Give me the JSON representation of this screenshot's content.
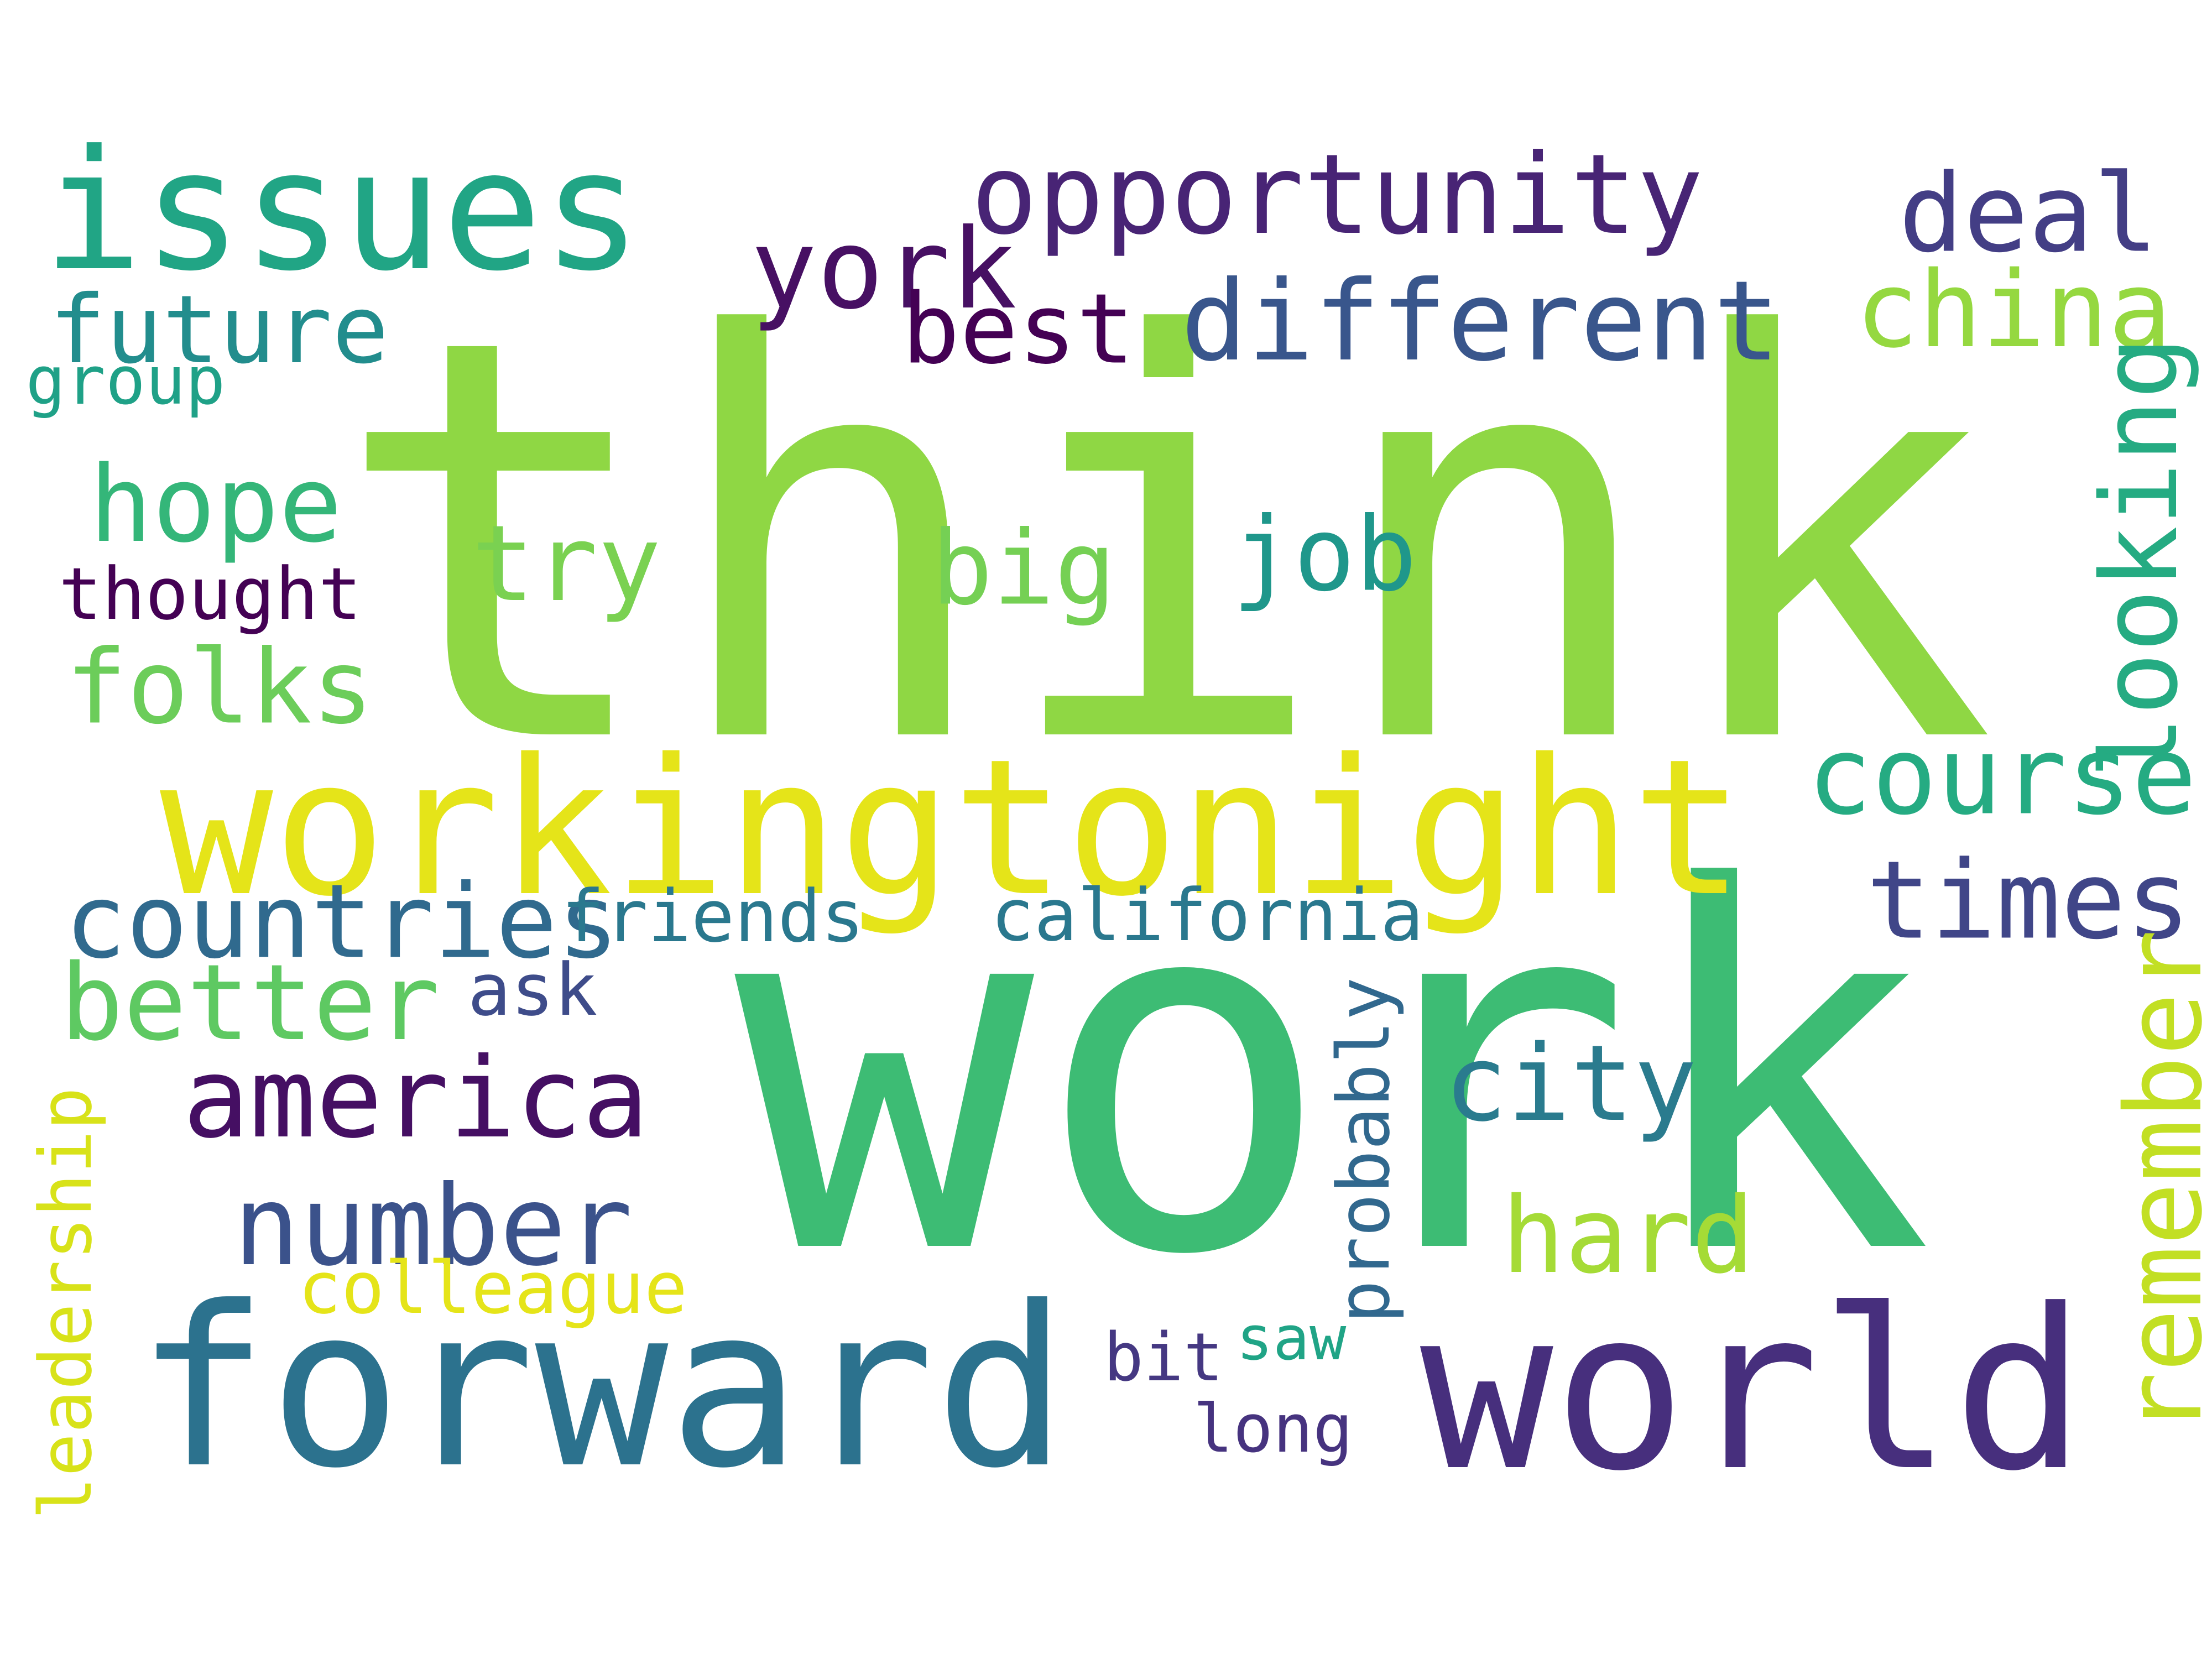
{
  "words": {
    "think": {
      "text": "think",
      "color": "#8fd744"
    },
    "work": {
      "text": "work",
      "color": "#3dbc74"
    },
    "workingtonight": {
      "text": "workingtonight",
      "color": "#e5e419"
    },
    "forward": {
      "text": "forward",
      "color": "#2c728e"
    },
    "world": {
      "text": "world",
      "color": "#472f7d"
    },
    "issues": {
      "text": "issues",
      "color": "#21a585"
    },
    "opportunity": {
      "text": "opportunity",
      "color": "#482475"
    },
    "different": {
      "text": "different",
      "color": "#39568c"
    },
    "york": {
      "text": "york",
      "color": "#471063"
    },
    "deal": {
      "text": "deal",
      "color": "#433e85"
    },
    "china": {
      "text": "china",
      "color": "#95d840"
    },
    "best": {
      "text": "best",
      "color": "#440154"
    },
    "future": {
      "text": "future",
      "color": "#228d8d"
    },
    "group": {
      "text": "group",
      "color": "#1fa187"
    },
    "hope": {
      "text": "hope",
      "color": "#34b679"
    },
    "try": {
      "text": "try",
      "color": "#7ad151"
    },
    "big": {
      "text": "big",
      "color": "#75d054"
    },
    "job": {
      "text": "job",
      "color": "#1f978b"
    },
    "thought": {
      "text": "thought",
      "color": "#440154"
    },
    "folks": {
      "text": "folks",
      "color": "#6ccd5a"
    },
    "looking": {
      "text": "looking",
      "color": "#25ab82"
    },
    "course": {
      "text": "course",
      "color": "#25ab82"
    },
    "countries": {
      "text": "countries",
      "color": "#306a8e"
    },
    "friends": {
      "text": "friends",
      "color": "#2a788e"
    },
    "california": {
      "text": "california",
      "color": "#2a788e"
    },
    "times": {
      "text": "times",
      "color": "#404688"
    },
    "better": {
      "text": "better",
      "color": "#5ec962"
    },
    "ask": {
      "text": "ask",
      "color": "#3e4c8a"
    },
    "probably": {
      "text": "probably",
      "color": "#31688e"
    },
    "america": {
      "text": "america",
      "color": "#450f63"
    },
    "city": {
      "text": "city",
      "color": "#2a7b8e"
    },
    "remember": {
      "text": "remember",
      "color": "#c2df23"
    },
    "leadership": {
      "text": "leadership",
      "color": "#d8e219"
    },
    "number": {
      "text": "number",
      "color": "#3b528b"
    },
    "hard": {
      "text": "hard",
      "color": "#a5db36"
    },
    "colleague": {
      "text": "colleague",
      "color": "#e5e419"
    },
    "saw": {
      "text": "saw",
      "color": "#20a486"
    },
    "bit": {
      "text": "bit",
      "color": "#453882"
    },
    "long": {
      "text": "long",
      "color": "#46337f"
    }
  }
}
